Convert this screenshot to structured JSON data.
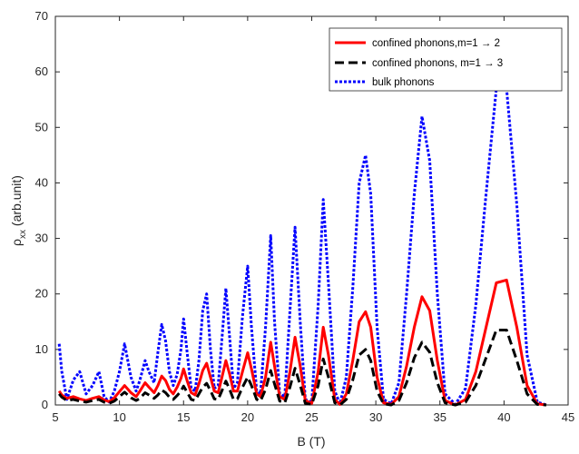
{
  "chart_data": {
    "type": "line",
    "title": "",
    "xlabel": "B (T)",
    "ylabel_main": "ρ",
    "ylabel_sub": "xx",
    "ylabel_rest": " (arb.unit)",
    "xlim": [
      5,
      45
    ],
    "ylim": [
      0,
      70
    ],
    "xticks": [
      "5",
      "10",
      "15",
      "20",
      "25",
      "30",
      "35",
      "40",
      "45"
    ],
    "yticks": [
      "0",
      "10",
      "20",
      "30",
      "40",
      "50",
      "60",
      "70"
    ],
    "xtick_values": [
      5,
      10,
      15,
      20,
      25,
      30,
      35,
      40,
      45
    ],
    "ytick_values": [
      0,
      10,
      20,
      30,
      40,
      50,
      60,
      70
    ],
    "grid": false,
    "legend_position": "top-right",
    "colors": {
      "confined_m2": "#ff0000",
      "confined_m3": "#000000",
      "bulk": "#0000ff",
      "axes": "#262626"
    },
    "series": [
      {
        "name": "confined phonons,m=1 → 2",
        "style": "solid",
        "x": [
          5.3,
          5.5,
          5.9,
          6.4,
          6.9,
          7.4,
          7.9,
          8.4,
          8.8,
          9.2,
          9.6,
          10.0,
          10.4,
          10.9,
          11.3,
          11.6,
          12.0,
          12.3,
          12.7,
          13.0,
          13.3,
          13.6,
          13.9,
          14.2,
          14.5,
          14.8,
          15.0,
          15.3,
          15.6,
          15.9,
          16.2,
          16.5,
          16.8,
          17.1,
          17.4,
          17.7,
          18.0,
          18.3,
          18.6,
          18.9,
          19.2,
          19.6,
          20.0,
          20.3,
          20.7,
          21.0,
          21.4,
          21.8,
          22.1,
          22.5,
          22.9,
          23.3,
          23.7,
          24.1,
          24.5,
          25.0,
          25.5,
          25.9,
          26.3,
          26.8,
          27.2,
          27.7,
          28.2,
          28.7,
          29.2,
          29.6,
          30.1,
          30.6,
          31.2,
          31.8,
          32.4,
          33.0,
          33.6,
          34.2,
          34.8,
          35.4,
          36.2,
          37.0,
          37.8,
          38.6,
          39.4,
          40.2,
          41.0,
          41.8,
          42.6,
          43.3
        ],
        "values": [
          2.5,
          1.8,
          1.2,
          1.5,
          1.1,
          0.8,
          1.2,
          1.5,
          0.9,
          0.6,
          1.3,
          2.4,
          3.5,
          2.2,
          1.5,
          2.5,
          4.0,
          3.2,
          2.2,
          3.5,
          5.2,
          4.4,
          2.8,
          2.0,
          3.2,
          4.8,
          6.5,
          4.2,
          2.2,
          1.8,
          3.8,
          6.2,
          7.5,
          5.0,
          2.5,
          2.2,
          5.0,
          8.0,
          5.5,
          2.5,
          2.5,
          6.0,
          9.4,
          6.5,
          2.0,
          1.5,
          5.0,
          11.3,
          7.0,
          1.5,
          1.0,
          6.0,
          12.2,
          7.0,
          0.8,
          0.3,
          6.0,
          14.0,
          9.0,
          1.0,
          0.1,
          2.0,
          8.0,
          15.0,
          16.8,
          14.0,
          5.0,
          0.4,
          0.1,
          1.5,
          7.0,
          14.0,
          19.5,
          17.0,
          8.0,
          0.8,
          0.0,
          1.0,
          6.0,
          14.0,
          22.0,
          22.5,
          14.0,
          3.5,
          0.2,
          0.0
        ]
      },
      {
        "name": "confined phonons, m=1 → 3",
        "style": "dashed",
        "x": [
          5.3,
          5.5,
          5.9,
          6.4,
          6.9,
          7.4,
          7.9,
          8.4,
          8.8,
          9.2,
          9.6,
          10.0,
          10.4,
          10.9,
          11.3,
          11.6,
          12.0,
          12.3,
          12.7,
          13.0,
          13.3,
          13.6,
          13.9,
          14.2,
          14.5,
          14.8,
          15.0,
          15.3,
          15.6,
          15.9,
          16.2,
          16.5,
          16.8,
          17.1,
          17.4,
          17.7,
          18.0,
          18.3,
          18.6,
          18.9,
          19.2,
          19.6,
          20.0,
          20.3,
          20.7,
          21.0,
          21.4,
          21.8,
          22.1,
          22.5,
          22.9,
          23.3,
          23.7,
          24.1,
          24.5,
          25.0,
          25.5,
          25.9,
          26.3,
          26.8,
          27.2,
          27.7,
          28.2,
          28.7,
          29.2,
          29.6,
          30.1,
          30.6,
          31.2,
          31.8,
          32.4,
          33.0,
          33.6,
          34.2,
          34.8,
          35.4,
          36.2,
          37.0,
          37.8,
          38.6,
          39.4,
          40.2,
          41.0,
          41.8,
          42.6,
          43.3
        ],
        "values": [
          2.0,
          1.4,
          0.8,
          1.0,
          0.7,
          0.5,
          0.8,
          1.0,
          0.5,
          0.3,
          0.7,
          1.5,
          2.3,
          1.3,
          0.8,
          1.2,
          2.2,
          1.8,
          1.2,
          1.8,
          2.7,
          2.2,
          1.4,
          1.0,
          1.7,
          2.5,
          3.4,
          2.2,
          1.0,
          0.8,
          2.0,
          3.2,
          3.9,
          2.6,
          1.1,
          1.0,
          2.6,
          4.3,
          2.8,
          1.0,
          1.1,
          3.2,
          5.0,
          3.5,
          1.0,
          0.7,
          2.8,
          6.2,
          3.8,
          0.7,
          0.4,
          3.2,
          6.6,
          3.6,
          0.3,
          0.1,
          3.5,
          8.3,
          5.0,
          0.4,
          0.0,
          1.0,
          4.5,
          9.0,
          10.0,
          8.0,
          2.5,
          0.2,
          0.0,
          0.8,
          4.0,
          8.5,
          11.3,
          9.5,
          4.0,
          0.4,
          0.0,
          0.5,
          3.5,
          8.5,
          13.5,
          13.5,
          8.0,
          2.0,
          0.1,
          0.0
        ]
      },
      {
        "name": "bulk phonons",
        "style": "dotted",
        "x": [
          5.3,
          5.5,
          5.9,
          6.4,
          6.9,
          7.4,
          7.9,
          8.4,
          8.8,
          9.2,
          9.6,
          10.0,
          10.4,
          10.9,
          11.3,
          11.6,
          12.0,
          12.3,
          12.7,
          13.0,
          13.3,
          13.6,
          13.9,
          14.2,
          14.5,
          14.8,
          15.0,
          15.3,
          15.6,
          15.9,
          16.2,
          16.5,
          16.8,
          17.1,
          17.4,
          17.7,
          18.0,
          18.3,
          18.6,
          18.9,
          19.2,
          19.6,
          20.0,
          20.3,
          20.7,
          21.0,
          21.4,
          21.8,
          22.1,
          22.5,
          22.9,
          23.3,
          23.7,
          24.1,
          24.5,
          25.0,
          25.5,
          25.9,
          26.3,
          26.8,
          27.2,
          27.7,
          28.2,
          28.7,
          29.2,
          29.6,
          30.1,
          30.6,
          31.2,
          31.8,
          32.4,
          33.0,
          33.6,
          34.2,
          34.8,
          35.4,
          36.2,
          37.0,
          37.8,
          38.6,
          39.4,
          40.2,
          41.0,
          41.8,
          42.6,
          43.3
        ],
        "values": [
          11.0,
          6.0,
          1.0,
          4.5,
          6.0,
          2.0,
          3.5,
          6.0,
          1.5,
          0.5,
          2.5,
          6.0,
          11.0,
          5.0,
          2.5,
          4.5,
          8.0,
          6.0,
          4.0,
          9.5,
          14.5,
          11.5,
          6.0,
          3.5,
          5.5,
          10.0,
          15.5,
          9.0,
          3.0,
          2.5,
          8.0,
          17.0,
          20.0,
          10.0,
          3.0,
          3.5,
          12.0,
          21.0,
          12.0,
          3.0,
          4.0,
          16.0,
          25.0,
          14.0,
          2.5,
          2.0,
          14.0,
          30.5,
          15.0,
          2.0,
          1.5,
          17.0,
          32.0,
          15.0,
          1.0,
          0.5,
          18.0,
          37.0,
          22.0,
          2.5,
          0.2,
          5.0,
          21.0,
          40.0,
          45.0,
          38.0,
          14.0,
          1.0,
          0.2,
          4.0,
          20.0,
          38.0,
          52.0,
          44.0,
          20.0,
          2.0,
          0.1,
          3.0,
          18.0,
          38.0,
          57.0,
          57.0,
          36.0,
          9.0,
          0.5,
          0.0
        ]
      }
    ]
  }
}
